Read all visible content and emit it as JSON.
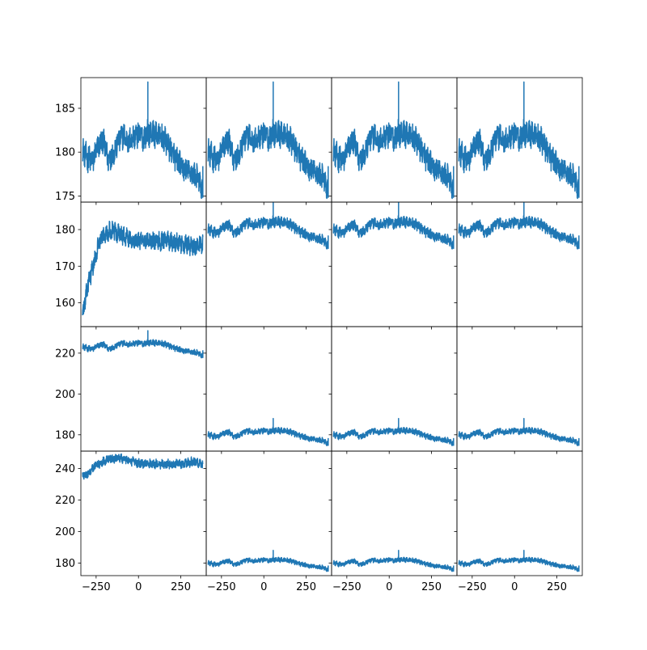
{
  "chart_data": {
    "type": "line",
    "layout": "4x4 grid of line panels; columns share x-axis, rows share y-axis within row except first column",
    "line_color": "#1f77b4",
    "grid": false,
    "x_range": [
      -340,
      400
    ],
    "x_ticks": [
      -250,
      0,
      250
    ],
    "x_tick_labels": [
      "−250",
      "0",
      "250"
    ],
    "rows": [
      {
        "ylim": [
          174.3,
          188.5
        ],
        "y_ticks": [
          175,
          180,
          185
        ],
        "y_tick_labels": [
          "175",
          "180",
          "185"
        ],
        "panels": [
          {
            "series": "A",
            "level": 0
          },
          {
            "series": "A",
            "level": 0
          },
          {
            "series": "A",
            "level": 0
          },
          {
            "series": "A",
            "level": 0
          }
        ]
      },
      {
        "ylim": [
          153.5,
          187.5
        ],
        "y_ticks": [
          160,
          170,
          180
        ],
        "y_tick_labels": [
          "160",
          "170",
          "180"
        ],
        "panels": [
          {
            "series": "B",
            "level": 0
          },
          {
            "series": "A",
            "level": 0
          },
          {
            "series": "A",
            "level": 0
          },
          {
            "series": "A",
            "level": 0
          }
        ]
      },
      {
        "ylim": [
          172,
          233
        ],
        "y_ticks": [
          180,
          200,
          220
        ],
        "y_tick_labels": [
          "180",
          "200",
          "220"
        ],
        "panels": [
          {
            "series": "A",
            "level": 43
          },
          {
            "series": "A",
            "level": 0
          },
          {
            "series": "A",
            "level": 0
          },
          {
            "series": "A",
            "level": 0
          }
        ]
      },
      {
        "ylim": [
          172,
          251
        ],
        "y_ticks": [
          180,
          200,
          220,
          240
        ],
        "y_tick_labels": [
          "180",
          "200",
          "220",
          "240"
        ],
        "panels": [
          {
            "series": "C",
            "level": 0
          },
          {
            "series": "A",
            "level": 0
          },
          {
            "series": "A",
            "level": 0
          },
          {
            "series": "A",
            "level": 0
          }
        ]
      }
    ],
    "series": {
      "A": {
        "knots": [
          [
            -330,
            180.2
          ],
          [
            -300,
            179.3
          ],
          [
            -270,
            179.0
          ],
          [
            -240,
            180.6
          ],
          [
            -210,
            181.4
          ],
          [
            -180,
            179.2
          ],
          [
            -150,
            179.8
          ],
          [
            -120,
            181.2
          ],
          [
            -90,
            182.0
          ],
          [
            -60,
            181.0
          ],
          [
            -30,
            181.8
          ],
          [
            0,
            182.0
          ],
          [
            30,
            181.6
          ],
          [
            50,
            182.1
          ],
          [
            80,
            182.2
          ],
          [
            110,
            181.9
          ],
          [
            140,
            181.6
          ],
          [
            170,
            181.0
          ],
          [
            200,
            179.9
          ],
          [
            230,
            179.0
          ],
          [
            260,
            178.2
          ],
          [
            290,
            177.8
          ],
          [
            320,
            177.5
          ],
          [
            350,
            177.0
          ],
          [
            380,
            175.6
          ]
        ],
        "noise": 1.3,
        "spike": {
          "x": 55,
          "y": 188
        },
        "last_spike": {
          "x": 380,
          "y": 178.4
        }
      },
      "B": {
        "knots": [
          [
            -330,
            157.0
          ],
          [
            -315,
            160.5
          ],
          [
            -300,
            164.5
          ],
          [
            -285,
            167.0
          ],
          [
            -270,
            169.5
          ],
          [
            -255,
            172.0
          ],
          [
            -240,
            175.5
          ],
          [
            -225,
            177.5
          ],
          [
            -200,
            179.0
          ],
          [
            -170,
            179.5
          ],
          [
            -140,
            179.4
          ],
          [
            -110,
            178.6
          ],
          [
            -80,
            178.0
          ],
          [
            -50,
            177.4
          ],
          [
            -20,
            177.0
          ],
          [
            10,
            177.2
          ],
          [
            40,
            176.8
          ],
          [
            70,
            177.0
          ],
          [
            100,
            176.8
          ],
          [
            130,
            176.6
          ],
          [
            160,
            177.4
          ],
          [
            190,
            176.8
          ],
          [
            220,
            176.5
          ],
          [
            250,
            176.2
          ],
          [
            280,
            176.0
          ],
          [
            310,
            175.6
          ],
          [
            340,
            175.4
          ],
          [
            380,
            176.0
          ]
        ],
        "noise": 2.2
      },
      "C": {
        "knots": [
          [
            -330,
            236.0
          ],
          [
            -310,
            235.0
          ],
          [
            -290,
            238.0
          ],
          [
            -270,
            240.0
          ],
          [
            -250,
            242.0
          ],
          [
            -220,
            244.0
          ],
          [
            -190,
            245.5
          ],
          [
            -160,
            246.0
          ],
          [
            -130,
            246.5
          ],
          [
            -100,
            246.0
          ],
          [
            -70,
            245.5
          ],
          [
            -40,
            244.5
          ],
          [
            -10,
            243.5
          ],
          [
            20,
            243.0
          ],
          [
            50,
            243.3
          ],
          [
            80,
            243.0
          ],
          [
            110,
            242.8
          ],
          [
            140,
            242.8
          ],
          [
            170,
            243.0
          ],
          [
            200,
            242.6
          ],
          [
            230,
            242.8
          ],
          [
            260,
            242.6
          ],
          [
            290,
            243.5
          ],
          [
            320,
            244.5
          ],
          [
            350,
            243.5
          ],
          [
            380,
            242.0
          ]
        ],
        "noise": 2.5
      }
    }
  }
}
